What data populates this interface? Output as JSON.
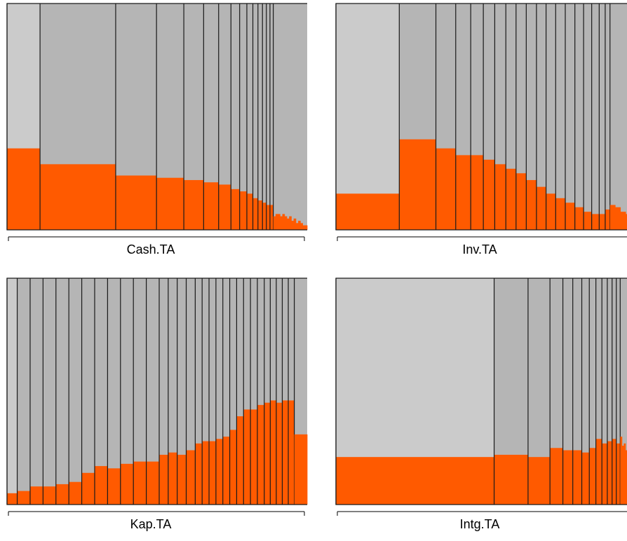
{
  "colors": {
    "background_light": "#cbcbcb",
    "background_dark": "#b5b5b5",
    "bar": "#ff5a00",
    "separator": "#1a1a1a"
  },
  "chart_data": [
    {
      "type": "bar",
      "xlabel": "Cash.TA",
      "ylim": [
        0,
        1
      ],
      "blocks": [
        {
          "width": 0.11,
          "value": 0.36,
          "shade": "light"
        },
        {
          "width": 0.252,
          "value": 0.29,
          "shade": "dark"
        },
        {
          "width": 0.136,
          "value": 0.24,
          "shade": "dark"
        },
        {
          "width": 0.091,
          "value": 0.23,
          "shade": "dark"
        },
        {
          "width": 0.066,
          "value": 0.22,
          "shade": "dark"
        },
        {
          "width": 0.05,
          "value": 0.21,
          "shade": "dark"
        },
        {
          "width": 0.041,
          "value": 0.2,
          "shade": "dark"
        },
        {
          "width": 0.029,
          "value": 0.18,
          "shade": "dark"
        },
        {
          "width": 0.024,
          "value": 0.17,
          "shade": "dark"
        },
        {
          "width": 0.02,
          "value": 0.16,
          "shade": "dark"
        },
        {
          "width": 0.017,
          "value": 0.14,
          "shade": "dark"
        },
        {
          "width": 0.015,
          "value": 0.13,
          "shade": "dark"
        },
        {
          "width": 0.013,
          "value": 0.12,
          "shade": "dark"
        },
        {
          "width": 0.012,
          "value": 0.11,
          "shade": "dark"
        },
        {
          "width": 0.011,
          "value": 0.11,
          "shade": "dark"
        }
      ],
      "tail_values": [
        0.06,
        0.07,
        0.07,
        0.06,
        0.07,
        0.06,
        0.05,
        0.06,
        0.04,
        0.05,
        0.03,
        0.04,
        0.03,
        0.02,
        0.02
      ]
    },
    {
      "type": "bar",
      "xlabel": "Inv.TA",
      "ylim": [
        0,
        1
      ],
      "blocks": [
        {
          "width": 0.211,
          "value": 0.16,
          "shade": "light"
        },
        {
          "width": 0.122,
          "value": 0.4,
          "shade": "dark"
        },
        {
          "width": 0.066,
          "value": 0.36,
          "shade": "dark"
        },
        {
          "width": 0.05,
          "value": 0.33,
          "shade": "dark"
        },
        {
          "width": 0.042,
          "value": 0.33,
          "shade": "dark"
        },
        {
          "width": 0.038,
          "value": 0.31,
          "shade": "dark"
        },
        {
          "width": 0.037,
          "value": 0.29,
          "shade": "dark"
        },
        {
          "width": 0.034,
          "value": 0.27,
          "shade": "dark"
        },
        {
          "width": 0.034,
          "value": 0.25,
          "shade": "dark"
        },
        {
          "width": 0.034,
          "value": 0.22,
          "shade": "dark"
        },
        {
          "width": 0.032,
          "value": 0.19,
          "shade": "dark"
        },
        {
          "width": 0.032,
          "value": 0.16,
          "shade": "dark"
        },
        {
          "width": 0.032,
          "value": 0.14,
          "shade": "dark"
        },
        {
          "width": 0.032,
          "value": 0.12,
          "shade": "dark"
        },
        {
          "width": 0.029,
          "value": 0.1,
          "shade": "dark"
        },
        {
          "width": 0.027,
          "value": 0.08,
          "shade": "dark"
        },
        {
          "width": 0.025,
          "value": 0.07,
          "shade": "dark"
        },
        {
          "width": 0.02,
          "value": 0.07,
          "shade": "dark"
        },
        {
          "width": 0.016,
          "value": 0.09,
          "shade": "dark"
        }
      ],
      "tail_values": [
        0.11,
        0.1,
        0.08,
        0.07,
        0.06
      ]
    },
    {
      "type": "bar",
      "xlabel": "Kap.TA",
      "ylim": [
        0,
        1
      ],
      "blocks": [
        {
          "width": 0.034,
          "value": 0.05,
          "shade": "light"
        },
        {
          "width": 0.043,
          "value": 0.06,
          "shade": "dark"
        },
        {
          "width": 0.043,
          "value": 0.08,
          "shade": "dark"
        },
        {
          "width": 0.043,
          "value": 0.08,
          "shade": "dark"
        },
        {
          "width": 0.043,
          "value": 0.09,
          "shade": "dark"
        },
        {
          "width": 0.043,
          "value": 0.1,
          "shade": "dark"
        },
        {
          "width": 0.043,
          "value": 0.14,
          "shade": "dark"
        },
        {
          "width": 0.043,
          "value": 0.17,
          "shade": "dark"
        },
        {
          "width": 0.043,
          "value": 0.16,
          "shade": "dark"
        },
        {
          "width": 0.043,
          "value": 0.18,
          "shade": "dark"
        },
        {
          "width": 0.043,
          "value": 0.19,
          "shade": "dark"
        },
        {
          "width": 0.043,
          "value": 0.19,
          "shade": "dark"
        },
        {
          "width": 0.03,
          "value": 0.22,
          "shade": "dark"
        },
        {
          "width": 0.03,
          "value": 0.23,
          "shade": "dark"
        },
        {
          "width": 0.03,
          "value": 0.22,
          "shade": "dark"
        },
        {
          "width": 0.03,
          "value": 0.24,
          "shade": "dark"
        },
        {
          "width": 0.023,
          "value": 0.27,
          "shade": "dark"
        },
        {
          "width": 0.023,
          "value": 0.28,
          "shade": "dark"
        },
        {
          "width": 0.023,
          "value": 0.28,
          "shade": "dark"
        },
        {
          "width": 0.023,
          "value": 0.29,
          "shade": "dark"
        },
        {
          "width": 0.023,
          "value": 0.3,
          "shade": "dark"
        },
        {
          "width": 0.023,
          "value": 0.33,
          "shade": "dark"
        },
        {
          "width": 0.023,
          "value": 0.39,
          "shade": "dark"
        },
        {
          "width": 0.023,
          "value": 0.42,
          "shade": "dark"
        },
        {
          "width": 0.023,
          "value": 0.42,
          "shade": "dark"
        },
        {
          "width": 0.023,
          "value": 0.44,
          "shade": "dark"
        },
        {
          "width": 0.02,
          "value": 0.45,
          "shade": "dark"
        },
        {
          "width": 0.02,
          "value": 0.46,
          "shade": "dark"
        },
        {
          "width": 0.02,
          "value": 0.45,
          "shade": "dark"
        },
        {
          "width": 0.02,
          "value": 0.46,
          "shade": "dark"
        },
        {
          "width": 0.02,
          "value": 0.46,
          "shade": "dark"
        }
      ],
      "tail_values": [
        0.31
      ]
    },
    {
      "type": "bar",
      "xlabel": "Intg.TA",
      "ylim": [
        0,
        1
      ],
      "blocks": [
        {
          "width": 0.527,
          "value": 0.21,
          "shade": "light"
        },
        {
          "width": 0.113,
          "value": 0.22,
          "shade": "dark"
        },
        {
          "width": 0.073,
          "value": 0.21,
          "shade": "dark"
        },
        {
          "width": 0.043,
          "value": 0.25,
          "shade": "dark"
        },
        {
          "width": 0.033,
          "value": 0.24,
          "shade": "dark"
        },
        {
          "width": 0.03,
          "value": 0.24,
          "shade": "dark"
        },
        {
          "width": 0.025,
          "value": 0.23,
          "shade": "dark"
        },
        {
          "width": 0.022,
          "value": 0.25,
          "shade": "dark"
        },
        {
          "width": 0.02,
          "value": 0.29,
          "shade": "dark"
        },
        {
          "width": 0.018,
          "value": 0.27,
          "shade": "dark"
        },
        {
          "width": 0.016,
          "value": 0.28,
          "shade": "dark"
        },
        {
          "width": 0.014,
          "value": 0.29,
          "shade": "dark"
        },
        {
          "width": 0.013,
          "value": 0.27,
          "shade": "dark"
        }
      ],
      "tail_values": [
        0.3,
        0.26,
        0.27,
        0.24,
        0.25,
        0.22,
        0.23,
        0.21,
        0.2
      ]
    }
  ]
}
